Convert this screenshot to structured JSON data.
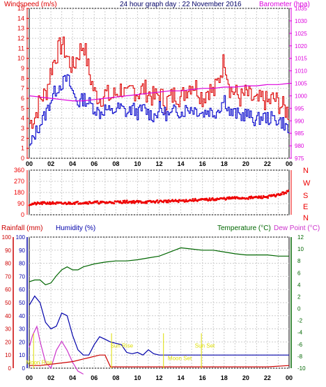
{
  "colors": {
    "windspeed": "#dd0000",
    "gust": "#dd0000",
    "wind_avg": "#0000cc",
    "barometer": "#dd00dd",
    "direction": "#ee0000",
    "rainfall": "#cc0000",
    "humidity": "#0000aa",
    "temperature": "#006600",
    "dewpoint": "#cc33cc",
    "sunmoon": "#dddd00",
    "grid": "#cccccc",
    "axis": "#000000",
    "title": "#000066"
  },
  "chart_data": [
    {
      "type": "line",
      "title": "24 hour graph day : 22 November 2016",
      "ylabel_left": "Windspeed (m/s)",
      "ylabel_right": "Barometer (hpa)",
      "x_ticks": [
        "00",
        "02",
        "04",
        "06",
        "08",
        "10",
        "12",
        "14",
        "16",
        "18",
        "20",
        "22",
        "00"
      ],
      "y_ticks_left": [
        "0",
        "1",
        "2",
        "3",
        "4",
        "5",
        "6",
        "7",
        "8",
        "9",
        "10",
        "11",
        "12",
        "13",
        "14",
        "15"
      ],
      "y_ticks_right": [
        "975",
        "980",
        "985",
        "990",
        "995",
        "1000",
        "1005",
        "1010",
        "1015",
        "1020",
        "1025",
        "1030",
        "1035"
      ],
      "ylim_left": [
        0,
        15
      ],
      "ylim_right": [
        975,
        1035
      ],
      "grid": true,
      "series": [
        {
          "name": "",
          "axis": "left",
          "style": "gust",
          "x": [
            0,
            0.5,
            1,
            1.5,
            2,
            2.5,
            3,
            3.5,
            4,
            4.5,
            5,
            5.5,
            6,
            6.5,
            7,
            7.5,
            8,
            8.5,
            9,
            9.5,
            10,
            10.5,
            11,
            11.5,
            12,
            12.5,
            13,
            13.5,
            14,
            14.5,
            15,
            15.5,
            16,
            16.5,
            17,
            17.5,
            18,
            18.5,
            19,
            19.5,
            20,
            20.5,
            21,
            21.5,
            22,
            22.5,
            23,
            23.5,
            24
          ],
          "y": [
            3.5,
            4.2,
            6.0,
            6.5,
            9.0,
            10.5,
            11.5,
            10.0,
            9.0,
            10.5,
            11.5,
            8.5,
            6.5,
            6.0,
            6.5,
            6.0,
            6.5,
            7.0,
            6.0,
            7.0,
            6.5,
            7.0,
            6.5,
            6.0,
            6.5,
            5.5,
            6.0,
            6.5,
            6.0,
            7.0,
            7.5,
            7.0,
            6.0,
            7.0,
            6.5,
            8.0,
            10.0,
            7.0,
            6.5,
            6.0,
            6.5,
            6.0,
            5.5,
            6.0,
            5.5,
            6.0,
            5.5,
            5.0,
            4.5
          ]
        },
        {
          "name": "",
          "axis": "left",
          "style": "avg",
          "x": [
            0,
            0.5,
            1,
            1.5,
            2,
            2.5,
            3,
            3.5,
            4,
            4.5,
            5,
            5.5,
            6,
            6.5,
            7,
            7.5,
            8,
            8.5,
            9,
            9.5,
            10,
            10.5,
            11,
            11.5,
            12,
            12.5,
            13,
            13.5,
            14,
            14.5,
            15,
            15.5,
            16,
            16.5,
            17,
            17.5,
            18,
            18.5,
            19,
            19.5,
            20,
            20.5,
            21,
            21.5,
            22,
            22.5,
            23,
            23.5,
            24
          ],
          "y": [
            1.0,
            2.5,
            3.5,
            4.5,
            6.0,
            7.0,
            7.5,
            8.0,
            6.5,
            5.5,
            6.0,
            5.5,
            5.0,
            4.5,
            5.0,
            4.5,
            5.0,
            5.0,
            4.5,
            5.0,
            4.5,
            5.0,
            4.5,
            4.2,
            5.0,
            4.5,
            4.2,
            5.0,
            4.5,
            5.0,
            5.0,
            4.8,
            4.5,
            4.8,
            4.5,
            5.0,
            6.0,
            4.5,
            4.5,
            4.2,
            4.5,
            4.0,
            3.8,
            4.2,
            4.0,
            4.0,
            3.8,
            3.5,
            2.5
          ]
        },
        {
          "name": "",
          "axis": "right",
          "style": "baro",
          "x": [
            0,
            1,
            2,
            3,
            4,
            5,
            6,
            7,
            8,
            9,
            10,
            11,
            12,
            13,
            14,
            15,
            16,
            17,
            18,
            19,
            20,
            21,
            22,
            23,
            24
          ],
          "y": [
            1000,
            999.5,
            999,
            998.5,
            998,
            998,
            998.5,
            999,
            999.5,
            1000,
            1000.5,
            1001,
            1001.5,
            1002,
            1002,
            1002.5,
            1003,
            1003,
            1003.5,
            1003.5,
            1004,
            1004,
            1004.5,
            1004.5,
            1005
          ]
        }
      ]
    },
    {
      "type": "scatter",
      "y_ticks_left": [
        "0",
        "90",
        "180",
        "270",
        "360"
      ],
      "y_ticks_right": [
        "N",
        "W",
        "S",
        "E",
        "N"
      ],
      "ylim": [
        0,
        360
      ],
      "grid": true,
      "series": [
        {
          "name": "",
          "style": "dir",
          "x": [
            0,
            1,
            2,
            3,
            4,
            5,
            6,
            7,
            8,
            9,
            10,
            11,
            12,
            13,
            14,
            15,
            16,
            17,
            18,
            19,
            20,
            21,
            22,
            23,
            24
          ],
          "y": [
            85,
            92,
            95,
            90,
            96,
            98,
            100,
            98,
            102,
            105,
            104,
            103,
            108,
            110,
            112,
            118,
            120,
            125,
            130,
            135,
            135,
            140,
            145,
            160,
            190
          ]
        }
      ]
    },
    {
      "type": "line",
      "ylabel_left": "Rainfall (mm)",
      "ylabel_left2": "Humidity (%)",
      "ylabel_right": "Temperature (°C)",
      "ylabel_right2": "Dew Point (°C)",
      "x_ticks": [
        "00",
        "02",
        "04",
        "06",
        "08",
        "10",
        "12",
        "14",
        "16",
        "18",
        "20",
        "22",
        "00"
      ],
      "y_ticks_left_outer": [
        "0",
        "10",
        "20",
        "30",
        "40",
        "50",
        "60",
        "70",
        "80",
        "90",
        "100"
      ],
      "y_ticks_left_inner": [
        "0",
        "10",
        "20",
        "30",
        "40",
        "50",
        "60",
        "70",
        "80",
        "90",
        "100"
      ],
      "y_ticks_right": [
        "-10",
        "-8",
        "-6",
        "-4",
        "-2",
        "0",
        "2",
        "4",
        "6",
        "8",
        "10",
        "12"
      ],
      "ylim_left": [
        0,
        100
      ],
      "ylim_right": [
        -10,
        12
      ],
      "grid": true,
      "annotations": [
        {
          "text": "Moon Rise",
          "x": -0.3,
          "y_right": -9.0
        },
        {
          "text": "Sun Rise",
          "x": 7.5,
          "y_right": -6.2
        },
        {
          "text": "Sun Set",
          "x": 15.3,
          "y_right": -6.2
        },
        {
          "text": "Moon Set",
          "x": 12.8,
          "y_right": -8.3
        }
      ],
      "series": [
        {
          "name": "",
          "axis": "right",
          "style": "temp",
          "x": [
            0,
            0.5,
            1,
            1.5,
            2,
            2.5,
            3,
            3.5,
            4,
            4.5,
            5,
            6,
            7,
            8,
            9,
            10,
            11,
            12,
            13,
            14,
            15,
            16,
            17,
            18,
            19,
            20,
            21,
            22,
            23,
            24
          ],
          "y": [
            4.5,
            4.8,
            4.8,
            4.0,
            4.3,
            5.5,
            6.5,
            7.0,
            6.5,
            6.5,
            7.0,
            7.5,
            7.8,
            8.0,
            8.0,
            8.2,
            8.5,
            8.8,
            9.5,
            10.2,
            10.0,
            9.8,
            9.8,
            9.5,
            9.2,
            9.0,
            9.0,
            9.0,
            8.8,
            8.8
          ]
        },
        {
          "name": "",
          "axis": "left",
          "style": "hum",
          "x": [
            0,
            0.5,
            1,
            1.5,
            2,
            2.5,
            3,
            3.5,
            4,
            4.5,
            5,
            5.5,
            6,
            6.5,
            7,
            7.5,
            8,
            8.5,
            9,
            9.5,
            10,
            10.5,
            11,
            11.5,
            12,
            13,
            14,
            15,
            16,
            17,
            18,
            19,
            20,
            21,
            22,
            23,
            24
          ],
          "y": [
            48,
            55,
            50,
            35,
            30,
            32,
            42,
            40,
            25,
            14,
            10,
            10,
            18,
            24,
            22,
            20,
            19,
            18,
            12,
            11,
            12,
            10,
            14,
            11,
            10,
            10,
            10,
            10,
            10,
            10,
            10,
            10,
            10,
            10,
            10,
            10,
            10
          ]
        },
        {
          "name": "",
          "axis": "right",
          "style": "dew",
          "x": [
            0,
            0.3,
            0.7,
            1,
            1.5,
            2,
            2.5,
            3,
            3.5,
            4,
            4.5,
            5
          ],
          "y": [
            -6.5,
            -4.5,
            -3.0,
            -5.5,
            -9.0,
            -10.0,
            -7.0,
            -5.5,
            -7.0,
            -9.0,
            -10.5,
            -11
          ]
        },
        {
          "name": "",
          "axis": "left",
          "style": "rain",
          "x": [
            0,
            1,
            2,
            3,
            4,
            5,
            5.5,
            6,
            6.5,
            7,
            7.5,
            8,
            10,
            12,
            14,
            16,
            18,
            20,
            22,
            24
          ],
          "y": [
            2,
            2,
            3,
            4,
            5,
            7,
            8,
            9,
            10,
            10,
            1,
            1,
            1,
            1,
            1,
            1,
            1,
            1,
            1,
            2
          ]
        }
      ]
    }
  ]
}
